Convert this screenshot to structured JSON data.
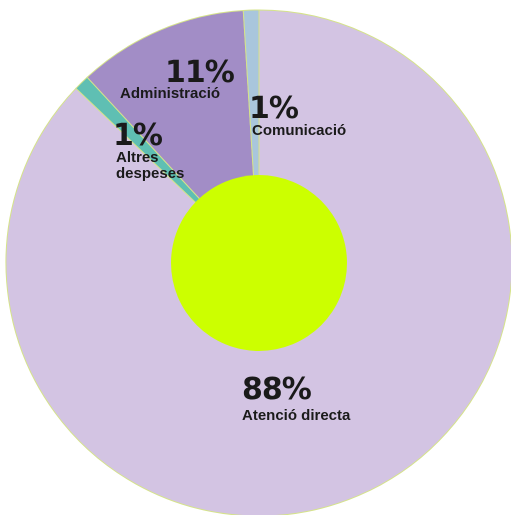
{
  "chart_data": {
    "type": "pie",
    "donut": true,
    "slices": [
      {
        "label": "Atenció directa",
        "percent_label": "88%",
        "value": 88,
        "color": "#d3c4e3"
      },
      {
        "label": "Altres despeses",
        "percent_label": "1%",
        "value": 1,
        "color": "#5fbfb3"
      },
      {
        "label": "Administració",
        "percent_label": "11%",
        "value": 11,
        "color": "#a28dc6"
      },
      {
        "label": "Comunicació",
        "percent_label": "1%",
        "value": 1,
        "color": "#a9c6dc"
      }
    ],
    "center_color": "#ccff00",
    "edge_color": "#d5e38a"
  }
}
